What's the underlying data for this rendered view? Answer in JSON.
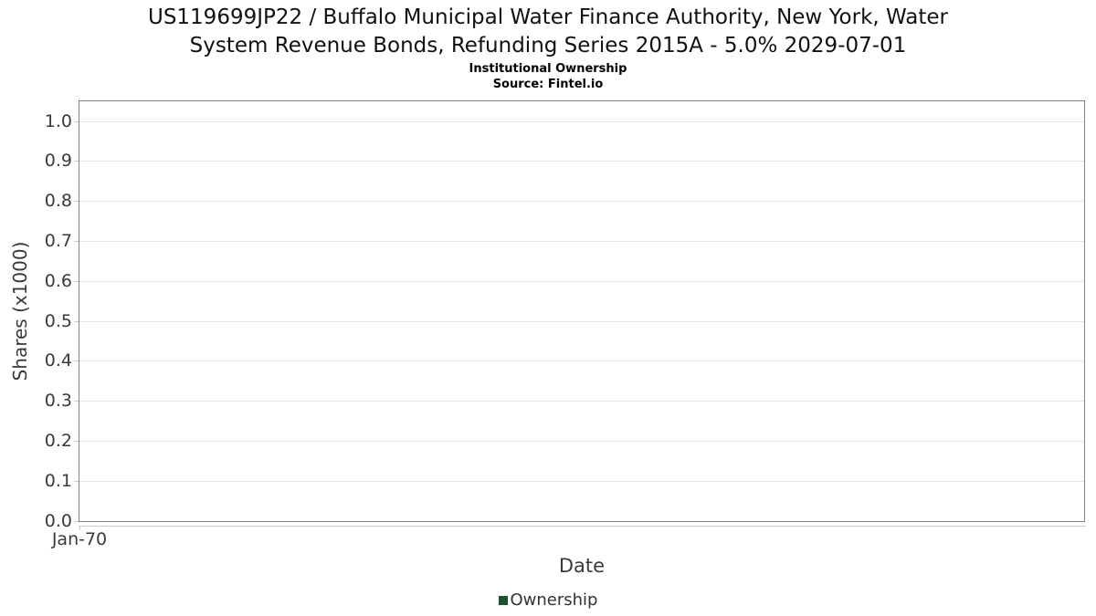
{
  "header": {
    "title_line1": "US119699JP22 / Buffalo Municipal Water Finance Authority, New York, Water",
    "title_line2": "System Revenue Bonds, Refunding Series 2015A - 5.0% 2029-07-01",
    "subtitle": "Institutional Ownership",
    "source": "Source: Fintel.io"
  },
  "chart_data": {
    "type": "line",
    "title": "US119699JP22 / Buffalo Municipal Water Finance Authority, New York, Water System Revenue Bonds, Refunding Series 2015A - 5.0% 2029-07-01",
    "subtitle": "Institutional Ownership",
    "source": "Source: Fintel.io",
    "xlabel": "Date",
    "ylabel": "Shares (x1000)",
    "ylim": [
      0.0,
      1.0
    ],
    "yticks": [
      0.0,
      0.1,
      0.2,
      0.3,
      0.4,
      0.5,
      0.6,
      0.7,
      0.8,
      0.9,
      1.0
    ],
    "ytick_labels": [
      "0.0",
      "0.1",
      "0.2",
      "0.3",
      "0.4",
      "0.5",
      "0.6",
      "0.7",
      "0.8",
      "0.9",
      "1.0"
    ],
    "xtick_labels": [
      "Jan-70"
    ],
    "grid": "horizontal",
    "legend_position": "bottom-center",
    "series": [
      {
        "name": "Ownership",
        "color": "#1e512d",
        "x": [],
        "values": []
      }
    ]
  },
  "colors": {
    "grid": "#e6e6e6",
    "plot_border": "#808080",
    "axis_line": "#cccccc",
    "tick_mark": "#cccccc",
    "tick_text": "#3a3a3a",
    "legend_marker": "#1e512d"
  }
}
